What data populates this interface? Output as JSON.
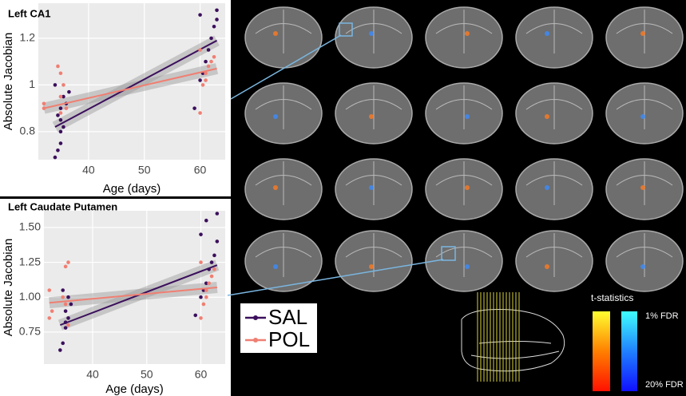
{
  "chart_data": [
    {
      "type": "scatter",
      "title": "Left CA1",
      "x_label": "Age (days)",
      "y_label": "Absolute Jacobian",
      "xlim": [
        31,
        64.5
      ],
      "xticks": [
        40,
        50,
        60
      ],
      "ylim": [
        0.68,
        1.35
      ],
      "yticks": [
        0.8,
        1.0,
        1.2
      ],
      "grid": true,
      "series": [
        {
          "name": "SAL",
          "color": "#3b0f5c",
          "x": [
            34,
            34.5,
            35,
            35,
            35.5,
            35,
            34.5,
            35,
            36,
            35.5,
            36.5,
            34,
            59,
            60,
            60.5,
            61,
            61.5,
            62,
            62.5,
            63,
            63,
            60
          ],
          "values": [
            0.69,
            0.72,
            0.75,
            0.8,
            0.82,
            0.85,
            0.87,
            0.9,
            0.92,
            0.95,
            0.97,
            1.0,
            0.9,
            1.02,
            1.05,
            1.1,
            1.15,
            1.2,
            1.25,
            1.28,
            1.32,
            1.3
          ],
          "fit": {
            "x": [
              34,
              63
            ],
            "values": [
              0.82,
              1.19
            ]
          }
        },
        {
          "name": "POL",
          "color": "#f07f72",
          "x": [
            32,
            32,
            35,
            35,
            35.5,
            35,
            34.5,
            36,
            60,
            60.5,
            61,
            61,
            61.5,
            62,
            62.5,
            60
          ],
          "values": [
            0.9,
            0.92,
            0.88,
            0.95,
            1.0,
            1.05,
            1.08,
            0.9,
            0.88,
            1.0,
            1.02,
            1.05,
            1.08,
            1.1,
            1.12,
            1.15
          ],
          "fit": {
            "x": [
              32,
              63
            ],
            "values": [
              0.9,
              1.07
            ]
          }
        }
      ]
    },
    {
      "type": "scatter",
      "title": "Left Caudate Putamen",
      "x_label": "Age (days)",
      "y_label": "Absolute Jacobian",
      "xlim": [
        31,
        64.5
      ],
      "xticks": [
        40,
        50,
        60
      ],
      "ylim": [
        0.52,
        1.62
      ],
      "yticks": [
        {
          "value": 0.75,
          "label": "0.75"
        },
        {
          "value": 1.0,
          "label": "1.00"
        },
        {
          "value": 1.25,
          "label": "1.25"
        },
        {
          "value": 1.5,
          "label": "1.50"
        }
      ],
      "grid": true,
      "series": [
        {
          "name": "SAL",
          "color": "#3b0f5c",
          "x": [
            34,
            34.5,
            35,
            35,
            35.5,
            35,
            36,
            35.5,
            34.5,
            59,
            60,
            60.5,
            61,
            61.5,
            62,
            62.5,
            63,
            60,
            61,
            63
          ],
          "values": [
            0.62,
            0.67,
            0.78,
            0.82,
            0.85,
            0.9,
            0.95,
            1.0,
            1.05,
            0.87,
            1.0,
            1.05,
            1.1,
            1.2,
            1.25,
            1.3,
            1.4,
            1.45,
            1.55,
            1.6
          ],
          "fit": {
            "x": [
              34,
              63
            ],
            "values": [
              0.8,
              1.23
            ]
          }
        },
        {
          "name": "POL",
          "color": "#f07f72",
          "x": [
            32,
            32,
            32.5,
            35,
            35.5,
            35,
            34.5,
            35.5,
            60,
            60.5,
            61,
            61,
            61.5,
            62,
            62.5,
            60
          ],
          "values": [
            1.05,
            0.85,
            0.9,
            1.22,
            1.25,
            0.95,
            1.0,
            0.8,
            0.85,
            0.95,
            1.0,
            1.05,
            1.1,
            1.15,
            1.2,
            1.25
          ],
          "fit": {
            "x": [
              32,
              63
            ],
            "values": [
              0.96,
              1.07
            ]
          }
        }
      ]
    }
  ],
  "colorbar": {
    "title": "t-statistics",
    "top_label": "1% FDR",
    "bottom_label": "20% FDR"
  }
}
